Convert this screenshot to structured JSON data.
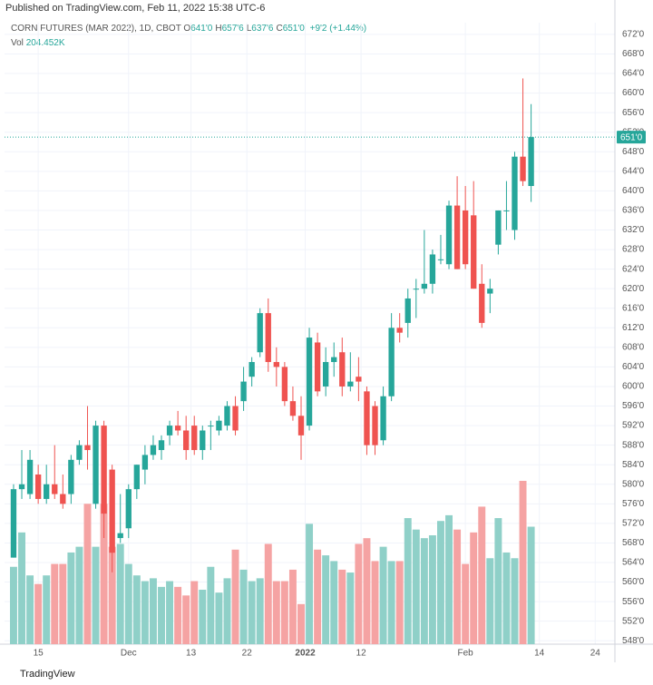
{
  "chart_data": {
    "type": "candlestick",
    "published": "Published on TradingView.com, Feb 11, 2022 15:38 UTC-6",
    "symbol": "CORN FUTURES (MAR 2022), 1D, CBOT",
    "ohlc": [
      {
        "key": "O",
        "value": "641'0"
      },
      {
        "key": "H",
        "value": "657'6"
      },
      {
        "key": "L",
        "value": "637'6"
      },
      {
        "key": "C",
        "value": "651'0"
      }
    ],
    "change": "+9'2 (+1.44%)",
    "volume_label": "Vol",
    "volume_value": "204.452K",
    "brand": "TradingView",
    "up_color": "#26a69a",
    "down_color": "#ef5350",
    "up_volume_color": "#8fd0c8",
    "down_volume_color": "#f5a3a3",
    "last_price": {
      "value": 651,
      "label": "651'0"
    },
    "ylim": [
      547.3,
      674.4
    ],
    "yticks": [
      {
        "value": 548,
        "label": "548'0"
      },
      {
        "value": 552,
        "label": "552'0"
      },
      {
        "value": 556,
        "label": "556'0"
      },
      {
        "value": 560,
        "label": "560'0"
      },
      {
        "value": 564,
        "label": "564'0"
      },
      {
        "value": 568,
        "label": "568'0"
      },
      {
        "value": 572,
        "label": "572'0"
      },
      {
        "value": 576,
        "label": "576'0"
      },
      {
        "value": 580,
        "label": "580'0"
      },
      {
        "value": 584,
        "label": "584'0"
      },
      {
        "value": 588,
        "label": "588'0"
      },
      {
        "value": 592,
        "label": "592'0"
      },
      {
        "value": 596,
        "label": "596'0"
      },
      {
        "value": 600,
        "label": "600'0"
      },
      {
        "value": 604,
        "label": "604'0"
      },
      {
        "value": 608,
        "label": "608'0"
      },
      {
        "value": 612,
        "label": "612'0"
      },
      {
        "value": 616,
        "label": "616'0"
      },
      {
        "value": 620,
        "label": "620'0"
      },
      {
        "value": 624,
        "label": "624'0"
      },
      {
        "value": 628,
        "label": "628'0"
      },
      {
        "value": 632,
        "label": "632'0"
      },
      {
        "value": 636,
        "label": "636'0"
      },
      {
        "value": 640,
        "label": "640'0"
      },
      {
        "value": 644,
        "label": "644'0"
      },
      {
        "value": 648,
        "label": "648'0"
      },
      {
        "value": 652,
        "label": "652'0"
      },
      {
        "value": 656,
        "label": "656'0"
      },
      {
        "value": 660,
        "label": "660'0"
      },
      {
        "value": 664,
        "label": "664'0"
      },
      {
        "value": 668,
        "label": "668'0"
      },
      {
        "value": 672,
        "label": "672'0"
      }
    ],
    "xlim": [
      -1.1,
      73.2
    ],
    "xticks": [
      {
        "value": 3,
        "label": "15"
      },
      {
        "value": 14,
        "label": "Dec"
      },
      {
        "value": 21.6,
        "label": "13"
      },
      {
        "value": 28.4,
        "label": "22"
      },
      {
        "value": 35.5,
        "label": "2022"
      },
      {
        "value": 42.3,
        "label": "12"
      },
      {
        "value": 55,
        "label": "Feb"
      },
      {
        "value": 64,
        "label": "14"
      },
      {
        "value": 70.8,
        "label": "24"
      }
    ],
    "open": [
      565,
      579,
      578,
      582,
      577,
      580,
      578,
      578,
      585,
      588,
      576,
      592,
      583,
      569,
      571,
      579,
      583,
      586,
      587,
      590,
      592,
      591,
      592,
      587,
      592,
      591,
      592,
      596,
      597,
      602,
      607,
      615,
      605,
      604,
      597,
      594,
      592,
      609,
      600,
      605,
      607,
      600,
      602,
      599,
      596,
      589,
      598,
      612,
      613,
      620,
      620,
      621,
      626,
      625,
      637,
      636,
      635,
      621,
      619,
      629,
      636,
      632,
      647,
      641
    ],
    "high": [
      580,
      587,
      587,
      584,
      584,
      588,
      582,
      586,
      589,
      596,
      593,
      593,
      584,
      578,
      580,
      584,
      588,
      590,
      590,
      593,
      595,
      594,
      594,
      592,
      593,
      594,
      597,
      598,
      604,
      606,
      616,
      618,
      608,
      605,
      600,
      598,
      612,
      611,
      608,
      609,
      610,
      607,
      606,
      600,
      597,
      600,
      615,
      615,
      620,
      622,
      632,
      628,
      631,
      638,
      643,
      641,
      642,
      625,
      622,
      636,
      642,
      648,
      663,
      657.75
    ],
    "low": [
      565,
      577,
      577,
      576,
      576,
      577,
      575,
      576,
      584,
      583,
      575,
      569,
      562,
      568,
      569,
      577,
      580,
      585,
      585,
      588,
      590,
      585,
      586,
      585,
      587,
      590,
      591,
      590,
      595,
      600,
      606,
      603,
      600,
      596,
      593,
      585,
      591,
      598,
      598,
      602,
      598,
      599,
      597,
      586,
      586,
      588,
      597,
      609,
      610,
      614,
      619,
      619,
      625,
      624,
      624,
      624,
      620,
      612,
      615,
      627,
      632,
      630,
      641,
      637.75
    ],
    "close": [
      579,
      580,
      585,
      577,
      580,
      578,
      576,
      585,
      588,
      587,
      592,
      574,
      566,
      570,
      579,
      584,
      586,
      588,
      589,
      592,
      591,
      587,
      587,
      591,
      592,
      593,
      596,
      591,
      601,
      605,
      615,
      605,
      604,
      597,
      594,
      590,
      610,
      599,
      605,
      606,
      600,
      601,
      601,
      588,
      588,
      598,
      612,
      611,
      618,
      620,
      621,
      627,
      626,
      637,
      624,
      625,
      620,
      613,
      620,
      636,
      636,
      647,
      642,
      651
    ],
    "volume": [
      135,
      195,
      120,
      105,
      120,
      140,
      140,
      160,
      170,
      245,
      170,
      245,
      170,
      175,
      140,
      120,
      110,
      115,
      100,
      110,
      100,
      85,
      110,
      95,
      135,
      90,
      115,
      165,
      130,
      110,
      115,
      175,
      110,
      110,
      130,
      70,
      210,
      165,
      155,
      145,
      130,
      125,
      175,
      185,
      145,
      170,
      145,
      145,
      220,
      200,
      185,
      190,
      215,
      225,
      200,
      140,
      195,
      240,
      150,
      220,
      160,
      150,
      285,
      205
    ]
  }
}
